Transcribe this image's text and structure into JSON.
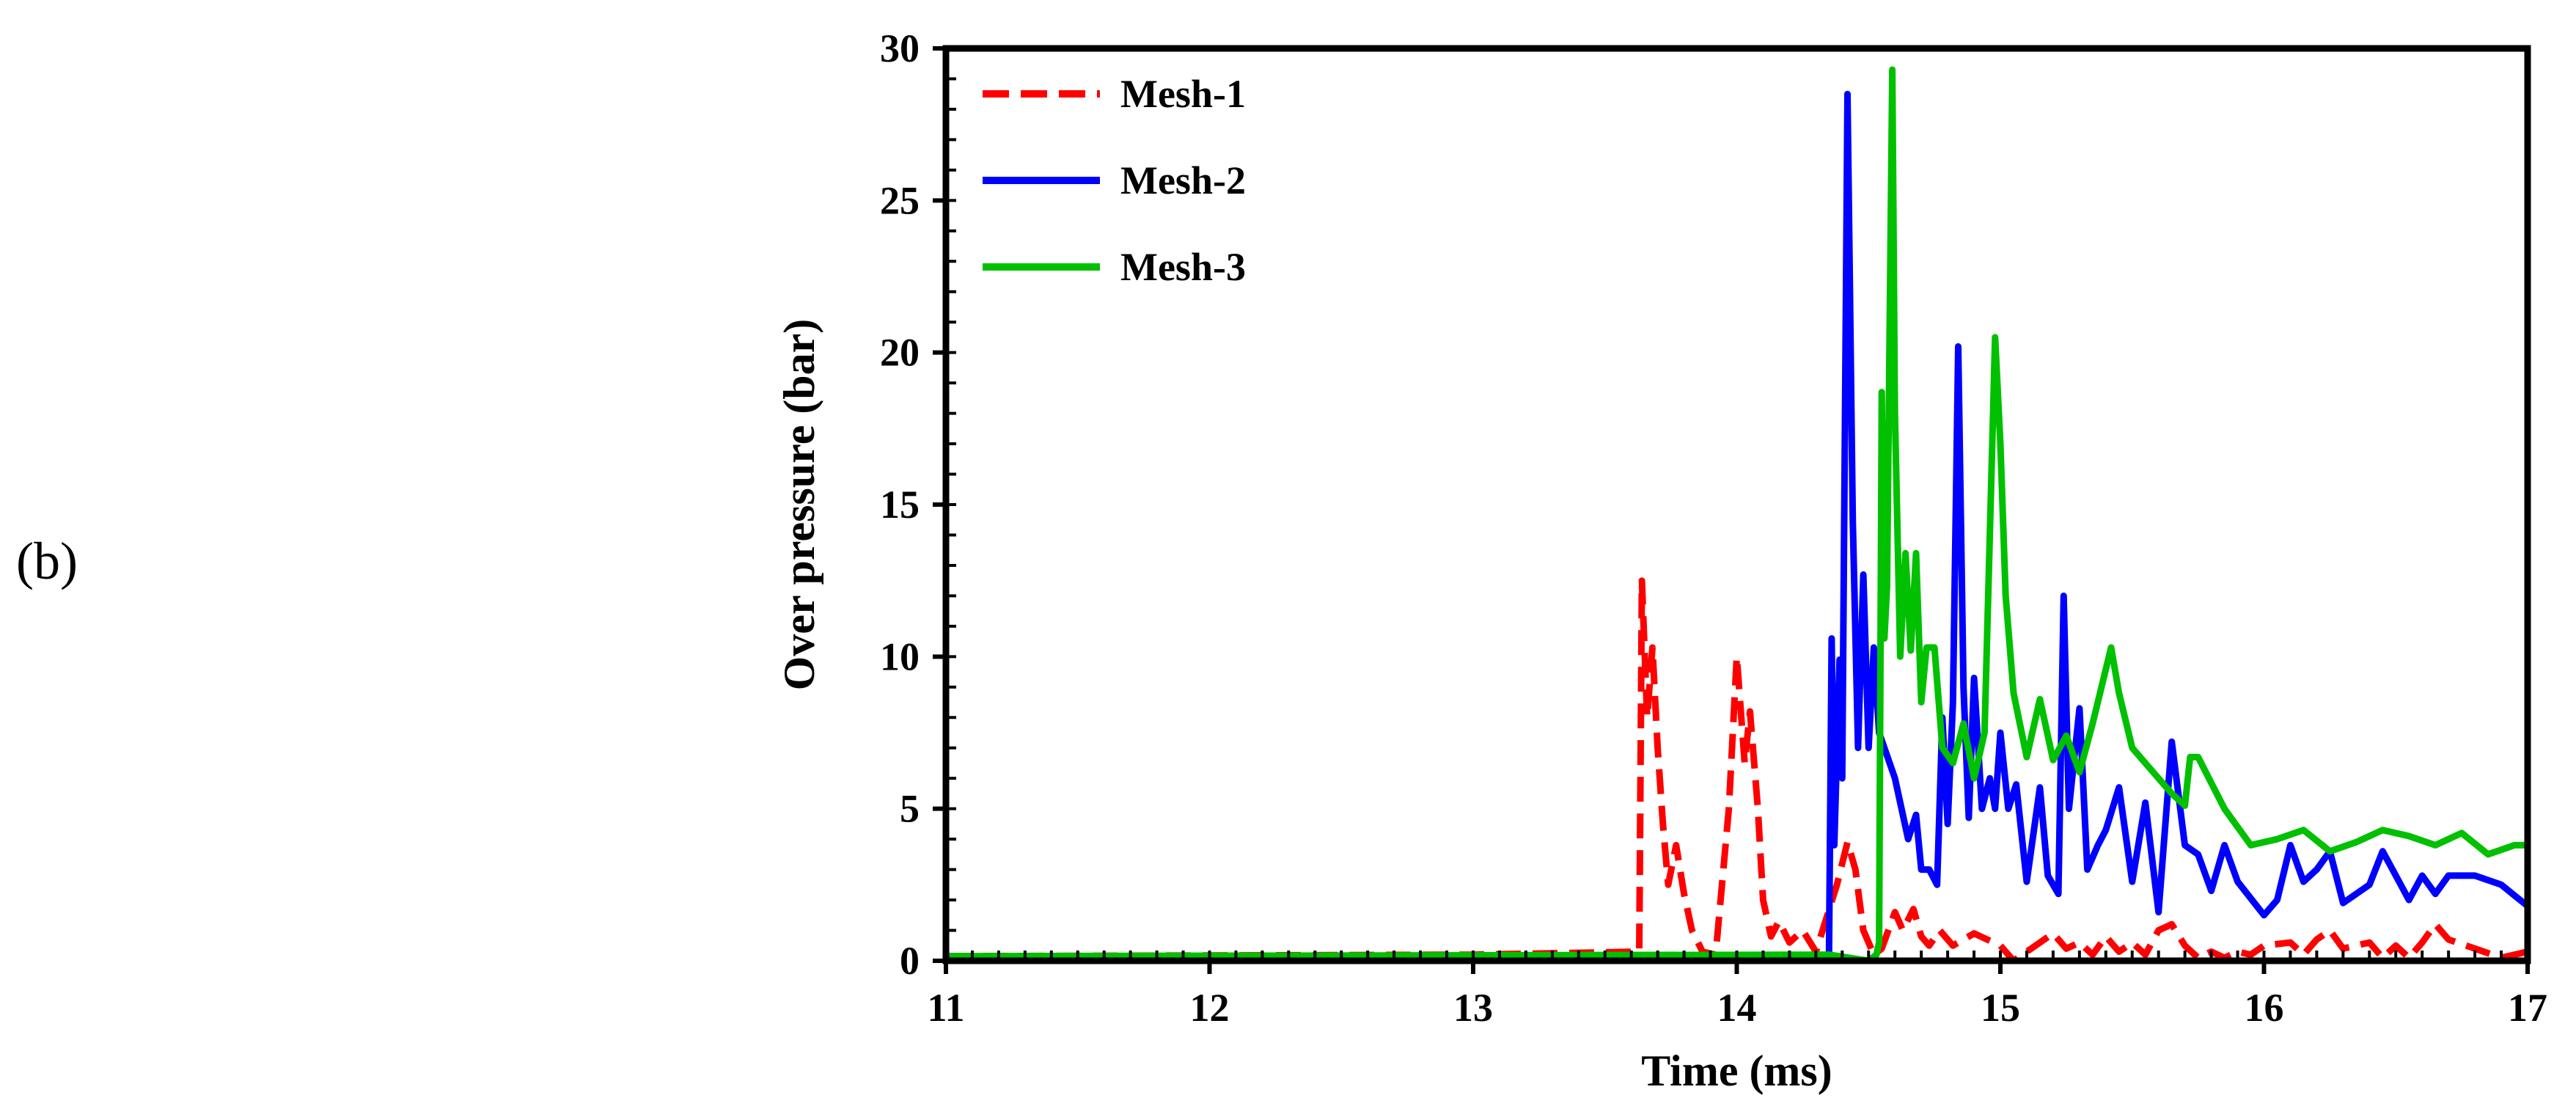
{
  "panel_label": "(b)",
  "chart_data": {
    "type": "line",
    "title": "",
    "xlabel": "Time (ms)",
    "ylabel": "Over pressure (bar)",
    "xlim": [
      11,
      17
    ],
    "ylim": [
      0,
      30
    ],
    "xticks": [
      11,
      12,
      13,
      14,
      15,
      16,
      17
    ],
    "yticks": [
      0,
      5,
      10,
      15,
      20,
      25,
      30
    ],
    "legend_position": "top-left",
    "grid": false,
    "series": [
      {
        "name": "Mesh-1",
        "color": "#ff0000",
        "dash": "dashed",
        "x": [
          11.0,
          13.0,
          13.63,
          13.64,
          13.66,
          13.68,
          13.7,
          13.72,
          13.74,
          13.77,
          13.8,
          13.83,
          13.87,
          13.92,
          13.97,
          14.0,
          14.03,
          14.05,
          14.08,
          14.1,
          14.13,
          14.16,
          14.2,
          14.25,
          14.3,
          14.38,
          14.42,
          14.45,
          14.48,
          14.52,
          14.55,
          14.6,
          14.63,
          14.67,
          14.7,
          14.73,
          14.77,
          14.82,
          14.9,
          15.0,
          15.05,
          15.1,
          15.2,
          15.25,
          15.3,
          15.35,
          15.4,
          15.45,
          15.5,
          15.55,
          15.6,
          15.65,
          15.7,
          15.75,
          15.8,
          15.85,
          15.9,
          15.95,
          16.0,
          16.1,
          16.15,
          16.2,
          16.25,
          16.3,
          16.4,
          16.45,
          16.5,
          16.55,
          16.6,
          16.65,
          16.7,
          16.8,
          16.9,
          17.0
        ],
        "y": [
          0.15,
          0.2,
          0.3,
          12.5,
          8.0,
          10.3,
          7.0,
          4.5,
          2.5,
          3.8,
          2.2,
          1.0,
          0.3,
          0.2,
          5.0,
          10.0,
          6.5,
          8.2,
          5.0,
          2.0,
          0.8,
          1.3,
          0.6,
          1.0,
          0.3,
          2.5,
          3.9,
          3.0,
          1.0,
          0.2,
          0.4,
          1.6,
          1.0,
          1.7,
          0.8,
          0.5,
          1.0,
          0.5,
          0.9,
          0.5,
          0.0,
          0.3,
          0.9,
          0.4,
          0.6,
          0.2,
          0.8,
          0.3,
          0.6,
          0.2,
          1.0,
          1.2,
          0.5,
          0.1,
          0.3,
          0.1,
          0.3,
          0.2,
          0.5,
          0.6,
          0.2,
          0.7,
          1.0,
          0.4,
          0.6,
          0.1,
          0.5,
          0.1,
          0.6,
          1.2,
          0.7,
          0.4,
          0.1,
          0.3
        ]
      },
      {
        "name": "Mesh-2",
        "color": "#0000ff",
        "dash": "solid",
        "x": [
          11.0,
          14.3,
          14.35,
          14.36,
          14.37,
          14.39,
          14.4,
          14.42,
          14.44,
          14.46,
          14.48,
          14.5,
          14.52,
          14.54,
          14.56,
          14.6,
          14.65,
          14.68,
          14.7,
          14.73,
          14.76,
          14.78,
          14.8,
          14.82,
          14.84,
          14.86,
          14.88,
          14.9,
          14.93,
          14.96,
          14.98,
          15.0,
          15.03,
          15.06,
          15.1,
          15.15,
          15.18,
          15.22,
          15.24,
          15.26,
          15.3,
          15.33,
          15.37,
          15.4,
          15.45,
          15.5,
          15.55,
          15.6,
          15.65,
          15.7,
          15.75,
          15.8,
          15.85,
          15.9,
          16.0,
          16.05,
          16.1,
          16.15,
          16.2,
          16.25,
          16.3,
          16.4,
          16.45,
          16.5,
          16.55,
          16.6,
          16.65,
          16.7,
          16.75,
          16.8,
          16.9,
          17.0
        ],
        "y": [
          0.1,
          0.15,
          0.2,
          10.6,
          3.8,
          9.9,
          6.0,
          28.5,
          14.5,
          7.0,
          12.7,
          7.0,
          10.3,
          7.5,
          7.0,
          6.0,
          4.0,
          4.8,
          3.0,
          3.0,
          2.5,
          8.0,
          4.5,
          8.5,
          20.2,
          9.0,
          4.7,
          9.3,
          5.0,
          6.0,
          5.0,
          7.5,
          5.0,
          5.8,
          2.6,
          5.7,
          2.8,
          2.2,
          12.0,
          5.0,
          8.3,
          3.0,
          3.8,
          4.3,
          5.7,
          2.6,
          5.2,
          1.6,
          7.2,
          3.8,
          3.5,
          2.3,
          3.8,
          2.6,
          1.5,
          2.0,
          3.8,
          2.6,
          3.0,
          3.6,
          1.9,
          2.5,
          3.6,
          2.8,
          2.0,
          2.8,
          2.2,
          2.8,
          2.8,
          2.8,
          2.5,
          1.8
        ]
      },
      {
        "name": "Mesh-3",
        "color": "#00c000",
        "dash": "solid",
        "x": [
          11.0,
          14.35,
          14.5,
          14.53,
          14.54,
          14.55,
          14.56,
          14.57,
          14.59,
          14.6,
          14.62,
          14.64,
          14.66,
          14.68,
          14.7,
          14.72,
          14.75,
          14.78,
          14.82,
          14.86,
          14.9,
          14.94,
          14.98,
          15.0,
          15.02,
          15.05,
          15.1,
          15.15,
          15.2,
          15.25,
          15.3,
          15.35,
          15.42,
          15.45,
          15.5,
          15.55,
          15.65,
          15.7,
          15.72,
          15.75,
          15.85,
          15.95,
          16.05,
          16.15,
          16.25,
          16.35,
          16.45,
          16.55,
          16.65,
          16.75,
          16.85,
          16.95,
          17.0
        ],
        "y": [
          0.15,
          0.2,
          0.0,
          0.2,
          0.6,
          18.7,
          10.6,
          12.3,
          29.3,
          18.0,
          10.0,
          13.4,
          10.2,
          13.4,
          8.5,
          10.3,
          10.3,
          7.0,
          6.5,
          7.8,
          6.0,
          7.5,
          20.5,
          17.0,
          12.0,
          8.8,
          6.7,
          8.6,
          6.6,
          7.4,
          6.2,
          7.8,
          10.3,
          8.8,
          7.0,
          6.5,
          5.5,
          5.1,
          6.7,
          6.7,
          5.0,
          3.8,
          4.0,
          4.3,
          3.6,
          3.9,
          4.3,
          4.1,
          3.8,
          4.2,
          3.5,
          3.8,
          3.8
        ]
      }
    ]
  }
}
